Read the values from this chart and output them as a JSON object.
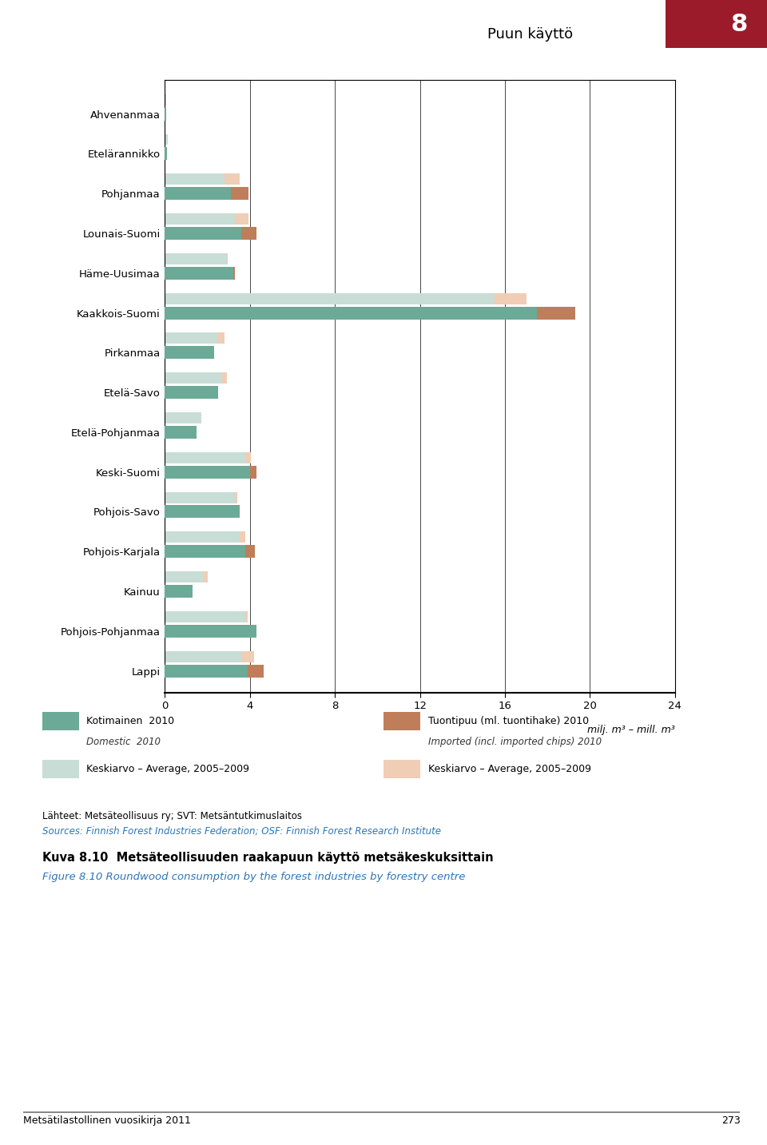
{
  "categories": [
    "Ahvenanmaa",
    "Etelärannikko",
    "Pohjanmaa",
    "Lounais-Suomi",
    "Häme-Uusimaa",
    "Kaakkois-Suomi",
    "Pirkanmaa",
    "Etelä-Savo",
    "Etelä-Pohjanmaa",
    "Keski-Suomi",
    "Pohjois-Savo",
    "Pohjois-Karjala",
    "Kainuu",
    "Pohjois-Pohjanmaa",
    "Lappi"
  ],
  "domestic_2010": [
    0.05,
    0.1,
    3.1,
    3.6,
    3.2,
    17.5,
    2.3,
    2.5,
    1.5,
    4.0,
    3.5,
    3.8,
    1.3,
    4.3,
    3.9
  ],
  "domestic_avg": [
    0.05,
    0.15,
    2.8,
    3.3,
    2.9,
    15.5,
    2.5,
    2.7,
    1.7,
    3.8,
    3.3,
    3.5,
    1.8,
    3.8,
    3.6
  ],
  "imported_2010": [
    0.0,
    0.0,
    0.85,
    0.7,
    0.1,
    1.8,
    0.0,
    0.0,
    0.0,
    0.3,
    0.0,
    0.45,
    0.0,
    0.0,
    0.75
  ],
  "imported_avg": [
    0.0,
    0.0,
    0.7,
    0.65,
    0.05,
    1.5,
    0.3,
    0.2,
    0.0,
    0.25,
    0.1,
    0.3,
    0.2,
    0.1,
    0.6
  ],
  "color_domestic_2010": "#6baa96",
  "color_domestic_avg": "#c8ddd5",
  "color_imported_2010": "#c07d5a",
  "color_imported_avg": "#f0cdb5",
  "xlim": [
    0,
    24
  ],
  "xticks": [
    0,
    4,
    8,
    12,
    16,
    20,
    24
  ],
  "xlabel": "milj. m³ – mill. m³",
  "title_fi": "Kuva 8.10  Metsäteollisuuden raakapuun käyttö metsäkeskuksittain",
  "title_en": "Figure 8.10 Roundwood consumption by the forest industries by forestry centre",
  "source_fi": "Lähteet: Metsäteollisuus ry; SVT: Metsäntutkimuslaitos",
  "source_en": "Sources: Finnish Forest Industries Federation; OSF: Finnish Forest Research Institute",
  "header_text": "Puun käyttö",
  "header_number": "8",
  "footer_text": "Metsätilastollinen vuosikirja 2011",
  "footer_number": "273"
}
